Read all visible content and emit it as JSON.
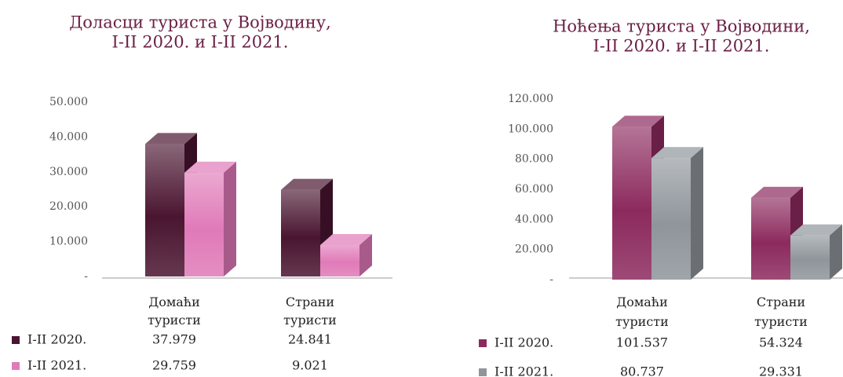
{
  "chart_data": [
    {
      "type": "bar",
      "title": [
        "Доласци туриста у Војводину,",
        "I-II 2020. и I-II 2021."
      ],
      "categories": [
        "Домаћи туристи",
        "Страни туристи"
      ],
      "series": [
        {
          "name": "I-II 2020.",
          "color": "#4a1530",
          "values": [
            37979,
            24841
          ],
          "value_labels": [
            "37.979",
            "24.841"
          ]
        },
        {
          "name": "I-II 2021.",
          "color": "#e07ab8",
          "values": [
            29759,
            9021
          ],
          "value_labels": [
            "29.759",
            "9.021"
          ]
        }
      ],
      "ylim": [
        0,
        50000
      ],
      "yticks": [
        {
          "value": 0,
          "label": "-"
        },
        {
          "value": 10000,
          "label": "10.000"
        },
        {
          "value": 20000,
          "label": "20.000"
        },
        {
          "value": 30000,
          "label": "30.000"
        },
        {
          "value": 40000,
          "label": "40.000"
        },
        {
          "value": 50000,
          "label": "50.000"
        }
      ]
    },
    {
      "type": "bar",
      "title": [
        "Ноћења туриста у Војводини,",
        "I-II 2020. и I-II 2021."
      ],
      "categories": [
        "Домаћи туристи",
        "Страни туристи"
      ],
      "series": [
        {
          "name": "I-II 2020.",
          "color": "#8c2a5e",
          "values": [
            101537,
            54324
          ],
          "value_labels": [
            "101.537",
            "54.324"
          ]
        },
        {
          "name": "I-II 2021.",
          "color": "#8f959b",
          "values": [
            80737,
            29331
          ],
          "value_labels": [
            "80.737",
            "29.331"
          ]
        }
      ],
      "ylim": [
        0,
        120000
      ],
      "yticks": [
        {
          "value": 0,
          "label": "-"
        },
        {
          "value": 20000,
          "label": "20.000"
        },
        {
          "value": 40000,
          "label": "40.000"
        },
        {
          "value": 60000,
          "label": "60.000"
        },
        {
          "value": 80000,
          "label": "80.000"
        },
        {
          "value": 100000,
          "label": "100.000"
        },
        {
          "value": 120000,
          "label": "120.000"
        }
      ]
    }
  ]
}
